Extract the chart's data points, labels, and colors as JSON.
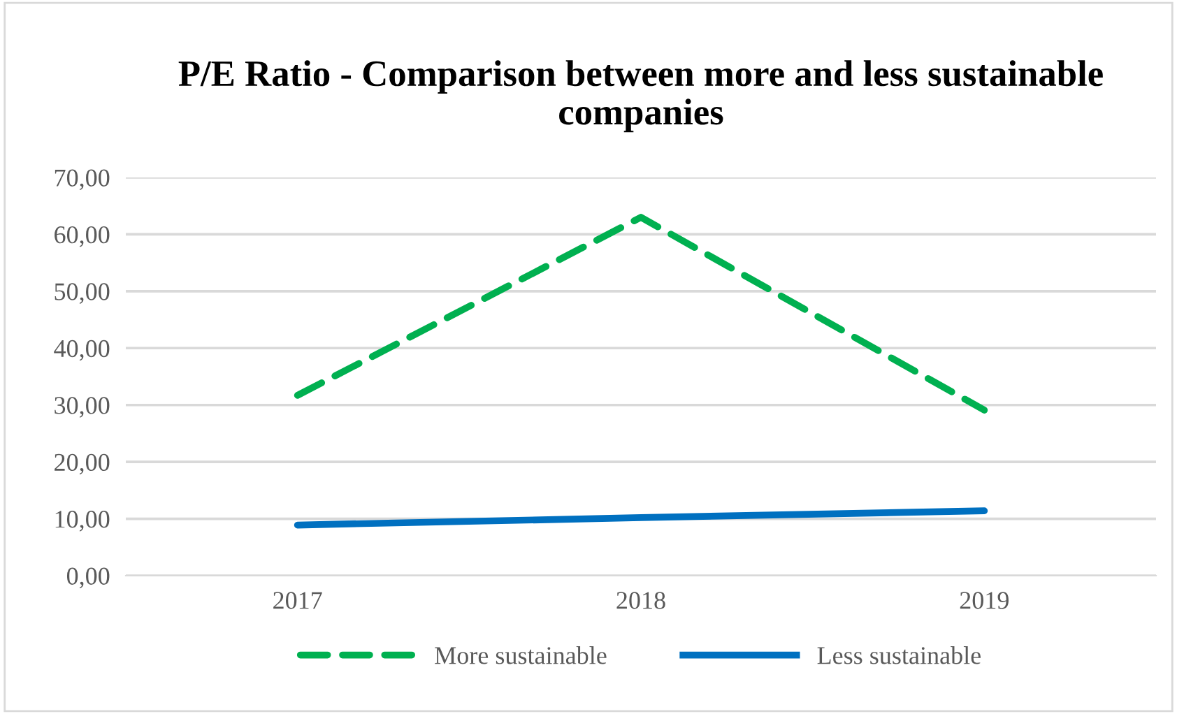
{
  "chart_data": {
    "type": "line",
    "title": "P/E Ratio - Comparison between more and less sustainable companies",
    "categories": [
      "2017",
      "2018",
      "2019"
    ],
    "series": [
      {
        "name": "More sustainable",
        "color": "#00b050",
        "line_style": "dashed",
        "values": [
          31.7,
          63.0,
          29.1
        ]
      },
      {
        "name": "Less sustainable",
        "color": "#0070c0",
        "line_style": "solid",
        "values": [
          8.9,
          10.2,
          11.4
        ]
      }
    ],
    "ylim": [
      0,
      70
    ],
    "yticks": [
      {
        "value": 0,
        "label": "0,00"
      },
      {
        "value": 10,
        "label": "10,00"
      },
      {
        "value": 20,
        "label": "20,00"
      },
      {
        "value": 30,
        "label": "30,00"
      },
      {
        "value": 40,
        "label": "40,00"
      },
      {
        "value": 50,
        "label": "50,00"
      },
      {
        "value": 60,
        "label": "60,00"
      },
      {
        "value": 70,
        "label": "70,00"
      }
    ],
    "grid": "y",
    "legend": "bottom",
    "marker": "none"
  }
}
